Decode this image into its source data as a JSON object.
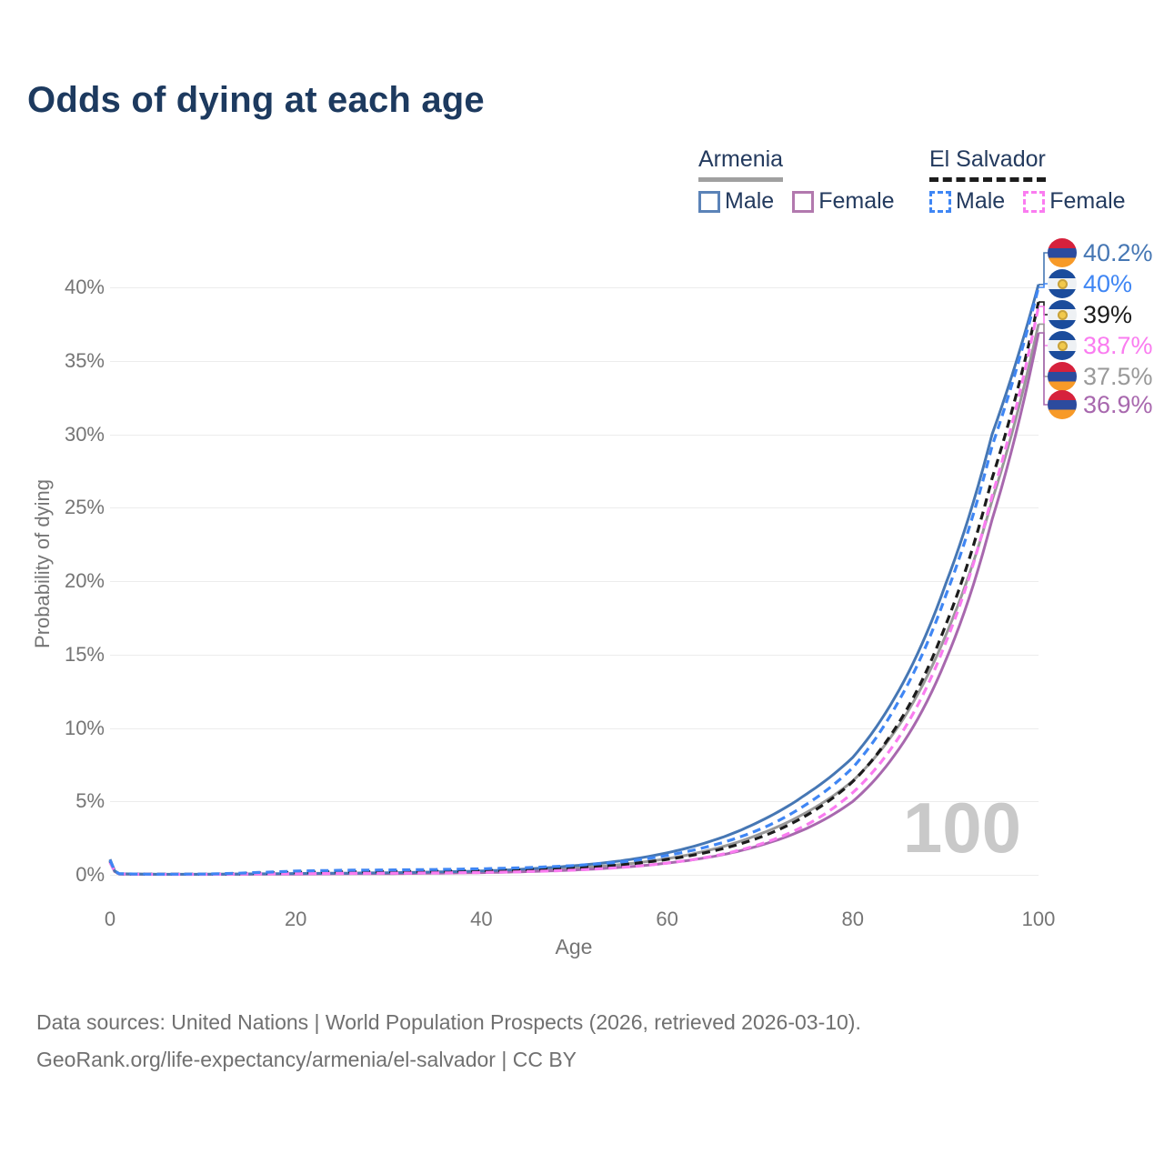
{
  "header": {
    "title": "Odds of dying at each age"
  },
  "legend": {
    "groups": [
      {
        "label": "Armenia",
        "underline_style": "solid",
        "underline_color": "#a0a0a0",
        "items": [
          {
            "label": "Male",
            "color": "#5b83b8",
            "dashed": false
          },
          {
            "label": "Female",
            "color": "#b279ae",
            "dashed": false
          }
        ]
      },
      {
        "label": "El Salvador",
        "underline_style": "dashed",
        "underline_color": "#1c1c1c",
        "items": [
          {
            "label": "Male",
            "color": "#3f86f4",
            "dashed": true
          },
          {
            "label": "Female",
            "color": "#fa7cf0",
            "dashed": true
          }
        ]
      }
    ]
  },
  "chart_data": {
    "type": "line",
    "title": "Odds of dying at each age",
    "xlabel": "Age",
    "ylabel": "Probability of dying",
    "xlim": [
      0,
      100
    ],
    "ylim": [
      0,
      40
    ],
    "xticks": [
      "0",
      "20",
      "40",
      "60",
      "80",
      "100"
    ],
    "yticks": [
      "0%",
      "5%",
      "10%",
      "15%",
      "20%",
      "25%",
      "30%",
      "35%",
      "40%"
    ],
    "grid": "horizontal",
    "legend_position": "top-right",
    "watermark_age": "100",
    "unit": "percent probability of dying at each age",
    "series": [
      {
        "id": "armenia-male",
        "name": "Armenia Male",
        "color": "#4677b4",
        "dashed": false,
        "flag": "armenia",
        "end_label": "40.2%",
        "end_value": 40.2,
        "points": [
          [
            0,
            1.05
          ],
          [
            1,
            0.07
          ],
          [
            5,
            0.04
          ],
          [
            10,
            0.04
          ],
          [
            15,
            0.06
          ],
          [
            20,
            0.09
          ],
          [
            25,
            0.11
          ],
          [
            30,
            0.14
          ],
          [
            35,
            0.19
          ],
          [
            40,
            0.26
          ],
          [
            45,
            0.4
          ],
          [
            50,
            0.62
          ],
          [
            55,
            0.95
          ],
          [
            60,
            1.5
          ],
          [
            65,
            2.35
          ],
          [
            70,
            3.65
          ],
          [
            75,
            5.5
          ],
          [
            80,
            8.0
          ],
          [
            85,
            12.6
          ],
          [
            90,
            19.8
          ],
          [
            95,
            30.0
          ],
          [
            100,
            40.2
          ]
        ]
      },
      {
        "id": "el-salvador-male",
        "name": "El Salvador Male",
        "color": "#3f86f4",
        "dashed": true,
        "flag": "el-salvador",
        "end_label": "40%",
        "end_value": 40.0,
        "points": [
          [
            0,
            1.0
          ],
          [
            1,
            0.07
          ],
          [
            5,
            0.04
          ],
          [
            10,
            0.05
          ],
          [
            15,
            0.14
          ],
          [
            20,
            0.26
          ],
          [
            25,
            0.31
          ],
          [
            30,
            0.33
          ],
          [
            35,
            0.36
          ],
          [
            40,
            0.41
          ],
          [
            45,
            0.49
          ],
          [
            50,
            0.63
          ],
          [
            55,
            0.87
          ],
          [
            60,
            1.32
          ],
          [
            65,
            2.02
          ],
          [
            70,
            3.1
          ],
          [
            75,
            4.8
          ],
          [
            80,
            7.3
          ],
          [
            85,
            11.9
          ],
          [
            90,
            19.0
          ],
          [
            95,
            29.2
          ],
          [
            100,
            40.0
          ]
        ]
      },
      {
        "id": "el-salvador-both",
        "name": "El Salvador",
        "color": "#1c1c1c",
        "dashed": true,
        "flag": "el-salvador",
        "end_label": "39%",
        "end_value": 39.0,
        "points": [
          [
            0,
            0.92
          ],
          [
            1,
            0.06
          ],
          [
            5,
            0.04
          ],
          [
            10,
            0.04
          ],
          [
            15,
            0.1
          ],
          [
            20,
            0.17
          ],
          [
            25,
            0.2
          ],
          [
            30,
            0.22
          ],
          [
            35,
            0.24
          ],
          [
            40,
            0.28
          ],
          [
            45,
            0.35
          ],
          [
            50,
            0.47
          ],
          [
            55,
            0.68
          ],
          [
            60,
            1.05
          ],
          [
            65,
            1.63
          ],
          [
            70,
            2.55
          ],
          [
            75,
            4.05
          ],
          [
            80,
            6.35
          ],
          [
            85,
            10.4
          ],
          [
            90,
            17.0
          ],
          [
            95,
            27.0
          ],
          [
            100,
            39.0
          ]
        ]
      },
      {
        "id": "el-salvador-female",
        "name": "El Salvador Female",
        "color": "#fa7cf0",
        "dashed": true,
        "flag": "el-salvador",
        "end_label": "38.7%",
        "end_value": 38.7,
        "points": [
          [
            0,
            0.85
          ],
          [
            1,
            0.06
          ],
          [
            5,
            0.03
          ],
          [
            10,
            0.03
          ],
          [
            15,
            0.06
          ],
          [
            20,
            0.08
          ],
          [
            25,
            0.1
          ],
          [
            30,
            0.11
          ],
          [
            35,
            0.13
          ],
          [
            40,
            0.16
          ],
          [
            45,
            0.22
          ],
          [
            50,
            0.32
          ],
          [
            55,
            0.5
          ],
          [
            60,
            0.8
          ],
          [
            65,
            1.28
          ],
          [
            70,
            2.08
          ],
          [
            75,
            3.4
          ],
          [
            80,
            5.6
          ],
          [
            85,
            9.4
          ],
          [
            90,
            15.8
          ],
          [
            95,
            25.8
          ],
          [
            100,
            38.7
          ]
        ]
      },
      {
        "id": "armenia-both",
        "name": "Armenia",
        "color": "#999999",
        "dashed": false,
        "flag": "armenia",
        "end_label": "37.5%",
        "end_value": 37.5,
        "points": [
          [
            0,
            0.95
          ],
          [
            1,
            0.06
          ],
          [
            5,
            0.03
          ],
          [
            10,
            0.03
          ],
          [
            15,
            0.05
          ],
          [
            20,
            0.07
          ],
          [
            25,
            0.09
          ],
          [
            30,
            0.11
          ],
          [
            35,
            0.15
          ],
          [
            40,
            0.2
          ],
          [
            45,
            0.3
          ],
          [
            50,
            0.46
          ],
          [
            55,
            0.7
          ],
          [
            60,
            1.1
          ],
          [
            65,
            1.75
          ],
          [
            70,
            2.78
          ],
          [
            75,
            4.25
          ],
          [
            80,
            6.4
          ],
          [
            85,
            10.2
          ],
          [
            90,
            16.3
          ],
          [
            95,
            25.5
          ],
          [
            100,
            37.5
          ]
        ]
      },
      {
        "id": "armenia-female",
        "name": "Armenia Female",
        "color": "#a868ae",
        "dashed": false,
        "flag": "armenia",
        "end_label": "36.9%",
        "end_value": 36.9,
        "points": [
          [
            0,
            0.85
          ],
          [
            1,
            0.06
          ],
          [
            5,
            0.03
          ],
          [
            10,
            0.03
          ],
          [
            15,
            0.04
          ],
          [
            20,
            0.05
          ],
          [
            25,
            0.07
          ],
          [
            30,
            0.08
          ],
          [
            35,
            0.11
          ],
          [
            40,
            0.15
          ],
          [
            45,
            0.22
          ],
          [
            50,
            0.33
          ],
          [
            55,
            0.51
          ],
          [
            60,
            0.8
          ],
          [
            65,
            1.25
          ],
          [
            70,
            2.0
          ],
          [
            75,
            3.15
          ],
          [
            80,
            5.0
          ],
          [
            85,
            8.6
          ],
          [
            90,
            14.6
          ],
          [
            95,
            24.2
          ],
          [
            100,
            36.9
          ]
        ]
      }
    ]
  },
  "footer": {
    "line1": "Data sources: United Nations | World Population Prospects (2026, retrieved 2026-03-10).",
    "line2": "GeoRank.org/life-expectancy/armenia/el-salvador | CC BY"
  }
}
